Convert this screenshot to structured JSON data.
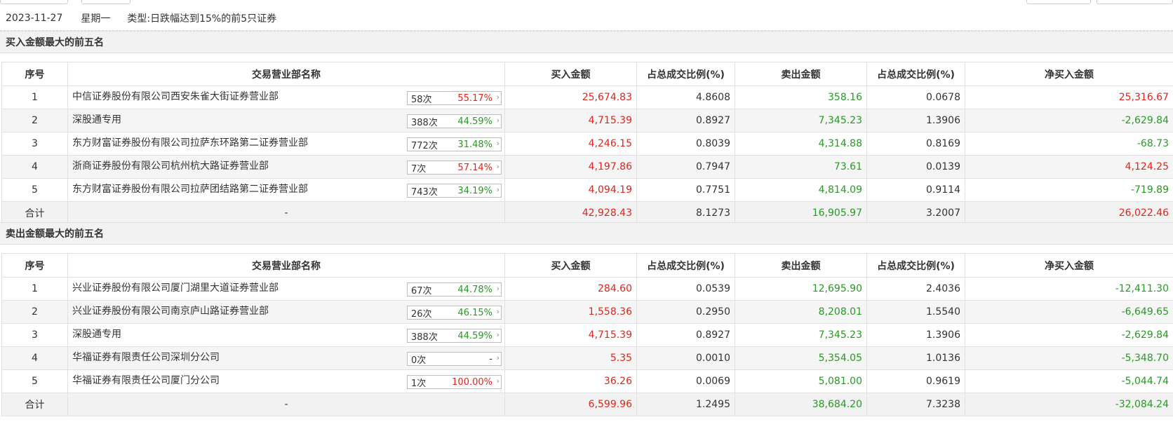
{
  "header": {
    "date": "2023-11-27",
    "weekday": "星期一",
    "type_label": "类型:",
    "type_value": "日跌幅达到15%的前5只证券"
  },
  "columns": [
    "序号",
    "交易营业部名称",
    "买入金额",
    "占总成交比例(%)",
    "卖出金额",
    "占总成交比例(%)",
    "净买入金额"
  ],
  "buy_section": {
    "title": "买入金额最大的前五名",
    "rows": [
      {
        "idx": "1",
        "name": "中信证券股份有限公司西安朱雀大街证券营业部",
        "count": "58次",
        "pct": "55.17%",
        "pct_color": "red",
        "buy": "25,674.83",
        "buy_ratio": "4.8608",
        "sell": "358.16",
        "sell_ratio": "0.0678",
        "net": "25,316.67",
        "net_color": "red"
      },
      {
        "idx": "2",
        "name": "深股通专用",
        "count": "388次",
        "pct": "44.59%",
        "pct_color": "green",
        "buy": "4,715.39",
        "buy_ratio": "0.8927",
        "sell": "7,345.23",
        "sell_ratio": "1.3906",
        "net": "-2,629.84",
        "net_color": "green"
      },
      {
        "idx": "3",
        "name": "东方财富证券股份有限公司拉萨东环路第二证券营业部",
        "count": "772次",
        "pct": "31.48%",
        "pct_color": "green",
        "buy": "4,246.15",
        "buy_ratio": "0.8039",
        "sell": "4,314.88",
        "sell_ratio": "0.8169",
        "net": "-68.73",
        "net_color": "green"
      },
      {
        "idx": "4",
        "name": "浙商证券股份有限公司杭州杭大路证券营业部",
        "count": "7次",
        "pct": "57.14%",
        "pct_color": "red",
        "buy": "4,197.86",
        "buy_ratio": "0.7947",
        "sell": "73.61",
        "sell_ratio": "0.0139",
        "net": "4,124.25",
        "net_color": "red"
      },
      {
        "idx": "5",
        "name": "东方财富证券股份有限公司拉萨团结路第二证券营业部",
        "count": "743次",
        "pct": "34.19%",
        "pct_color": "green",
        "buy": "4,094.19",
        "buy_ratio": "0.7751",
        "sell": "4,814.09",
        "sell_ratio": "0.9114",
        "net": "-719.89",
        "net_color": "green"
      }
    ],
    "total": {
      "label": "合计",
      "name": "-",
      "buy": "42,928.43",
      "buy_ratio": "8.1273",
      "sell": "16,905.97",
      "sell_ratio": "3.2007",
      "net": "26,022.46",
      "net_color": "red"
    }
  },
  "sell_section": {
    "title": "卖出金额最大的前五名",
    "rows": [
      {
        "idx": "1",
        "name": "兴业证券股份有限公司厦门湖里大道证券营业部",
        "count": "67次",
        "pct": "44.78%",
        "pct_color": "green",
        "buy": "284.60",
        "buy_ratio": "0.0539",
        "sell": "12,695.90",
        "sell_ratio": "2.4036",
        "net": "-12,411.30",
        "net_color": "green"
      },
      {
        "idx": "2",
        "name": "兴业证券股份有限公司南京庐山路证券营业部",
        "count": "26次",
        "pct": "46.15%",
        "pct_color": "green",
        "buy": "1,558.36",
        "buy_ratio": "0.2950",
        "sell": "8,208.01",
        "sell_ratio": "1.5540",
        "net": "-6,649.65",
        "net_color": "green"
      },
      {
        "idx": "3",
        "name": "深股通专用",
        "count": "388次",
        "pct": "44.59%",
        "pct_color": "green",
        "buy": "4,715.39",
        "buy_ratio": "0.8927",
        "sell": "7,345.23",
        "sell_ratio": "1.3906",
        "net": "-2,629.84",
        "net_color": "green"
      },
      {
        "idx": "4",
        "name": "华福证券有限责任公司深圳分公司",
        "count": "0次",
        "pct": "-",
        "pct_color": "gray",
        "buy": "5.35",
        "buy_ratio": "0.0010",
        "sell": "5,354.05",
        "sell_ratio": "1.0136",
        "net": "-5,348.70",
        "net_color": "green"
      },
      {
        "idx": "5",
        "name": "华福证券有限责任公司厦门分公司",
        "count": "1次",
        "pct": "100.00%",
        "pct_color": "red",
        "buy": "36.26",
        "buy_ratio": "0.0069",
        "sell": "5,081.00",
        "sell_ratio": "0.9619",
        "net": "-5,044.74",
        "net_color": "green"
      }
    ],
    "total": {
      "label": "合计",
      "name": "-",
      "buy": "6,599.96",
      "buy_ratio": "1.2495",
      "sell": "38,684.20",
      "sell_ratio": "7.3238",
      "net": "-32,084.24",
      "net_color": "green"
    }
  },
  "colors": {
    "red": "#e0251b",
    "green": "#279a24",
    "gray": "#333333",
    "header_bg": "#f2f2f2",
    "stripe_bg": "#f5f5f5"
  },
  "icons": {
    "row_arrow": "chevron-right-icon"
  }
}
